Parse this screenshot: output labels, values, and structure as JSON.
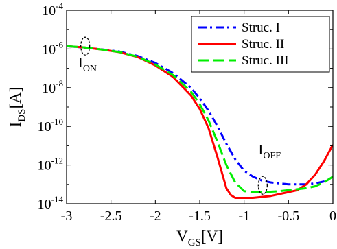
{
  "chart_data": {
    "type": "line",
    "xlabel": {
      "main": "V",
      "sub": "GS",
      "unit": "[V]"
    },
    "ylabel": {
      "main": "I",
      "sub": "DS",
      "unit": "[A]"
    },
    "xlim": [
      -3,
      0
    ],
    "ylim_log10": [
      -14,
      -4
    ],
    "yscale": "log",
    "x_ticks": [
      -3,
      -2.5,
      -2,
      -1.5,
      -1,
      -0.5,
      0
    ],
    "x_tick_labels": [
      "-3",
      "-2.5",
      "-2",
      "-1.5",
      "-1",
      "-0.5",
      "0"
    ],
    "y_tick_exponents": [
      -4,
      -6,
      -8,
      -10,
      -12,
      -14
    ],
    "y_tick_labels": [
      {
        "base": "10",
        "exp": "-4"
      },
      {
        "base": "10",
        "exp": "-6"
      },
      {
        "base": "10",
        "exp": "-8"
      },
      {
        "base": "10",
        "exp": "-10"
      },
      {
        "base": "10",
        "exp": "-12"
      },
      {
        "base": "10",
        "exp": "-14"
      }
    ],
    "legend_position": "top-right",
    "grid": false,
    "series": [
      {
        "name": "Struc. I",
        "color": "#0000ff",
        "dash": "dashdot",
        "x": [
          -3,
          -2.8,
          -2.6,
          -2.4,
          -2.2,
          -2.0,
          -1.8,
          -1.6,
          -1.5,
          -1.4,
          -1.3,
          -1.2,
          -1.1,
          -1.0,
          -0.9,
          -0.8,
          -0.7,
          -0.6,
          -0.5,
          -0.4,
          -0.3,
          -0.2,
          -0.1,
          0
        ],
        "log10": [
          -5.85,
          -5.93,
          -6.02,
          -6.14,
          -6.36,
          -6.72,
          -7.25,
          -8.0,
          -8.55,
          -9.2,
          -10.0,
          -10.9,
          -11.7,
          -12.3,
          -12.6,
          -12.8,
          -12.9,
          -12.95,
          -13.0,
          -13.0,
          -13.0,
          -12.95,
          -12.85,
          -12.65
        ]
      },
      {
        "name": "Struc. II",
        "color": "#ff0000",
        "dash": "solid",
        "x": [
          -3,
          -2.8,
          -2.6,
          -2.4,
          -2.2,
          -2.0,
          -1.8,
          -1.6,
          -1.5,
          -1.4,
          -1.3,
          -1.2,
          -1.15,
          -1.1,
          -1.0,
          -0.9,
          -0.8,
          -0.7,
          -0.6,
          -0.5,
          -0.4,
          -0.3,
          -0.2,
          -0.1,
          0
        ],
        "log10": [
          -5.85,
          -5.92,
          -6.03,
          -6.17,
          -6.42,
          -6.85,
          -7.45,
          -8.4,
          -9.1,
          -10.1,
          -11.6,
          -13.2,
          -13.55,
          -13.7,
          -13.7,
          -13.7,
          -13.65,
          -13.6,
          -13.5,
          -13.4,
          -13.3,
          -13.0,
          -12.5,
          -11.8,
          -10.95
        ]
      },
      {
        "name": "Struc. III",
        "color": "#00ee00",
        "dash": "dashed",
        "x": [
          -3,
          -2.8,
          -2.6,
          -2.4,
          -2.2,
          -2.0,
          -1.8,
          -1.6,
          -1.5,
          -1.4,
          -1.3,
          -1.2,
          -1.1,
          -1.0,
          -0.9,
          -0.8,
          -0.7,
          -0.6,
          -0.5,
          -0.4,
          -0.3,
          -0.2,
          -0.1,
          0
        ],
        "log10": [
          -5.85,
          -5.92,
          -6.03,
          -6.16,
          -6.4,
          -6.8,
          -7.35,
          -8.2,
          -8.85,
          -9.7,
          -10.8,
          -12.0,
          -12.9,
          -13.35,
          -13.4,
          -13.4,
          -13.38,
          -13.35,
          -13.3,
          -13.25,
          -13.2,
          -13.1,
          -12.9,
          -12.6
        ]
      }
    ],
    "annotations": [
      {
        "main": "I",
        "sub": "ON",
        "ellipse_x": -2.79,
        "ellipse_log10": -5.85,
        "label_x": -2.87,
        "label_log10": -6.95
      },
      {
        "main": "I",
        "sub": "OFF",
        "ellipse_x": -0.79,
        "ellipse_log10": -13.05,
        "label_x": -0.84,
        "label_log10": -11.45
      }
    ]
  }
}
